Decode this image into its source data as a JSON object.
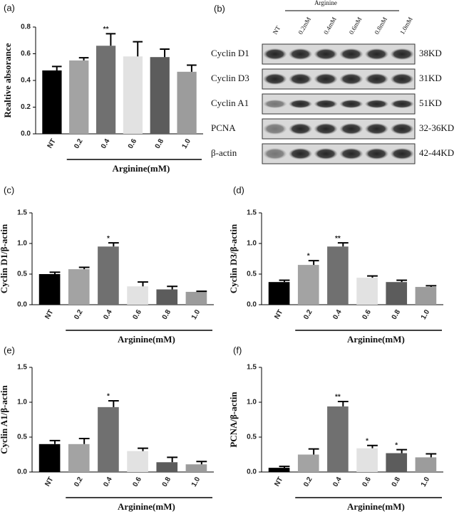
{
  "chart_data": [
    {
      "type": "bar",
      "panel": "(a)",
      "ylabel": "Realtive absorance",
      "xlabel": "Arginine(mM)",
      "categories": [
        "NT",
        "0.2",
        "0.4",
        "0.6",
        "0.8",
        "1.0"
      ],
      "values": [
        0.475,
        0.55,
        0.66,
        0.58,
        0.575,
        0.465
      ],
      "errors": [
        0.03,
        0.02,
        0.09,
        0.11,
        0.06,
        0.05
      ],
      "significance": [
        null,
        null,
        "**",
        null,
        null,
        null
      ],
      "colors": [
        "#000000",
        "#a3a3a3",
        "#707070",
        "#e2e2e2",
        "#5c5c5c",
        "#9c9c9c"
      ],
      "ylim": [
        0,
        0.8
      ],
      "yticks": [
        {
          "value": 0,
          "label": "0.0"
        },
        0.2,
        0.4,
        0.6,
        0.8
      ]
    },
    {
      "type": "bar",
      "panel": "(c)",
      "ylabel": "Cyclin D1/β-actin",
      "xlabel": "Arginine(mM)",
      "categories": [
        "NT",
        "0.2",
        "0.4",
        "0.6",
        "0.8",
        "1.0"
      ],
      "values": [
        0.5,
        0.58,
        0.95,
        0.3,
        0.25,
        0.21
      ],
      "errors": [
        0.03,
        0.03,
        0.06,
        0.07,
        0.05,
        0.01
      ],
      "significance": [
        null,
        null,
        "*",
        null,
        null,
        null
      ],
      "colors": [
        "#000000",
        "#a3a3a3",
        "#707070",
        "#e2e2e2",
        "#5c5c5c",
        "#9c9c9c"
      ],
      "ylim": [
        0,
        1.5
      ],
      "yticks": [
        {
          "value": 0,
          "label": "0.0"
        },
        0.5,
        {
          "value": 1,
          "label": "1.0"
        },
        1.5
      ]
    },
    {
      "type": "bar",
      "panel": "(d)",
      "ylabel": "Cyclin D3/β-actin",
      "xlabel": "Arginine(mM)",
      "categories": [
        "NT",
        "0.2",
        "0.4",
        "0.6",
        "0.8",
        "1.0"
      ],
      "values": [
        0.37,
        0.65,
        0.95,
        0.44,
        0.37,
        0.29
      ],
      "errors": [
        0.03,
        0.07,
        0.06,
        0.03,
        0.03,
        0.02
      ],
      "significance": [
        null,
        "*",
        "**",
        null,
        null,
        null
      ],
      "colors": [
        "#000000",
        "#a3a3a3",
        "#707070",
        "#e2e2e2",
        "#5c5c5c",
        "#9c9c9c"
      ],
      "ylim": [
        0,
        1.5
      ],
      "yticks": [
        {
          "value": 0,
          "label": "0.0"
        },
        0.5,
        {
          "value": 1,
          "label": "1.0"
        },
        1.5
      ]
    },
    {
      "type": "bar",
      "panel": "(e)",
      "ylabel": "Cyclin A1/β-actin",
      "xlabel": "Arginine(mM)",
      "categories": [
        "NT",
        "0.2",
        "0.4",
        "0.6",
        "0.8",
        "1.0"
      ],
      "values": [
        0.4,
        0.4,
        0.93,
        0.3,
        0.14,
        0.11
      ],
      "errors": [
        0.05,
        0.08,
        0.09,
        0.04,
        0.07,
        0.04
      ],
      "significance": [
        null,
        null,
        "*",
        null,
        null,
        null
      ],
      "colors": [
        "#000000",
        "#a3a3a3",
        "#707070",
        "#e2e2e2",
        "#5c5c5c",
        "#9c9c9c"
      ],
      "ylim": [
        0,
        1.5
      ],
      "yticks": [
        {
          "value": 0,
          "label": "0.0"
        },
        0.5,
        {
          "value": 1,
          "label": "1.0"
        },
        1.5
      ]
    },
    {
      "type": "bar",
      "panel": "(f)",
      "ylabel": "PCNA/β-actin",
      "xlabel": "Arginine(mM)",
      "categories": [
        "NT",
        "0.2",
        "0.4",
        "0.6",
        "0.8",
        "1.0"
      ],
      "values": [
        0.06,
        0.25,
        0.94,
        0.34,
        0.27,
        0.21
      ],
      "errors": [
        0.02,
        0.08,
        0.07,
        0.04,
        0.05,
        0.05
      ],
      "significance": [
        null,
        null,
        "**",
        "*",
        "*",
        null
      ],
      "colors": [
        "#000000",
        "#a3a3a3",
        "#707070",
        "#e2e2e2",
        "#5c5c5c",
        "#9c9c9c"
      ],
      "ylim": [
        0,
        1.5
      ],
      "yticks": [
        {
          "value": 0,
          "label": "0.0"
        },
        0.5,
        {
          "value": 1,
          "label": "1.0"
        },
        1.5
      ]
    }
  ],
  "blot": {
    "panel": "(b)",
    "header": "Arginine",
    "lanes": [
      "NT",
      "0.2mM",
      "0.4mM",
      "0.6mM",
      "0.8mM",
      "1.0mM"
    ],
    "rows": [
      {
        "protein": "Cyclin D1",
        "size": "38KD"
      },
      {
        "protein": "Cyclin D3",
        "size": "31KD"
      },
      {
        "protein": "Cyclin A1",
        "size": "51KD"
      },
      {
        "protein": "PCNA",
        "size": "32-36KD"
      },
      {
        "protein": "β-actin",
        "size": "42-44KD"
      }
    ]
  }
}
